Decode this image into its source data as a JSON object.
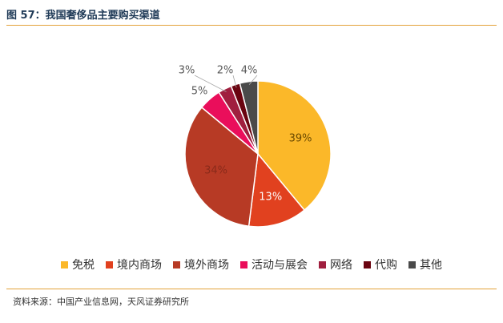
{
  "header": {
    "title": "图 57：我国奢侈品主要购买渠道"
  },
  "footer": {
    "source": "资料来源：中国产业信息网，天风证券研究所"
  },
  "chart_data": {
    "type": "pie",
    "title": "",
    "legend_position": "bottom",
    "categories": [
      "免税",
      "境内商场",
      "境外商场",
      "活动与展会",
      "网络",
      "代购",
      "其他"
    ],
    "values": [
      39,
      13,
      34,
      5,
      3,
      2,
      4
    ],
    "labels": [
      "39%",
      "13%",
      "34%",
      "5%",
      "3%",
      "2%",
      "4%"
    ],
    "colors": [
      "#fbb829",
      "#e1411f",
      "#b73a25",
      "#ea0e5b",
      "#a01f3f",
      "#6a0410",
      "#4a4a4a"
    ]
  }
}
